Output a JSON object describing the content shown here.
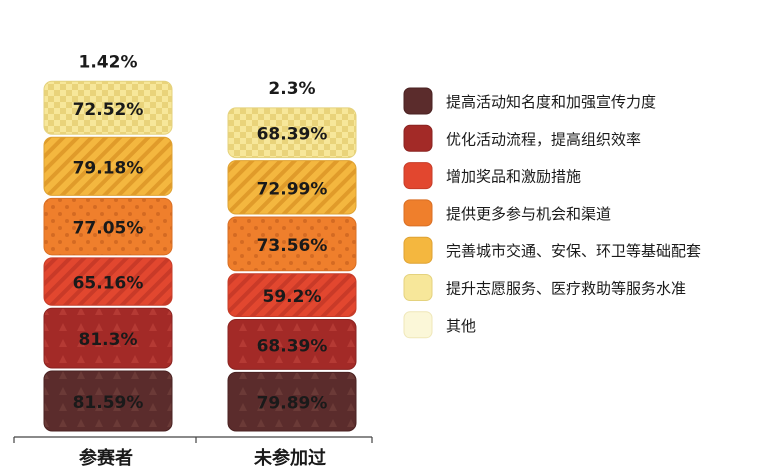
{
  "chart_data": {
    "type": "bar",
    "subtype": "stacked",
    "categories": [
      "参赛者",
      "未参加过"
    ],
    "series": [
      {
        "name": "提高活动知名度和加强宣传力度",
        "values": [
          81.59,
          79.89
        ],
        "labels": [
          "81.59%",
          "79.89%"
        ],
        "color": "#5b2c2c"
      },
      {
        "name": "优化活动流程，提高组织效率",
        "values": [
          81.3,
          68.39
        ],
        "labels": [
          "81.3%",
          "68.39%"
        ],
        "color": "#a32a27"
      },
      {
        "name": "增加奖品和激励措施",
        "values": [
          65.16,
          59.2
        ],
        "labels": [
          "65.16%",
          "59.2%"
        ],
        "color": "#e2472f"
      },
      {
        "name": "提供更多参与机会和渠道",
        "values": [
          77.05,
          73.56
        ],
        "labels": [
          "77.05%",
          "73.56%"
        ],
        "color": "#ef7f2c"
      },
      {
        "name": "完善城市交通、安保、环卫等基础配套",
        "values": [
          79.18,
          72.99
        ],
        "labels": [
          "79.18%",
          "72.99%"
        ],
        "color": "#f4b73f"
      },
      {
        "name": "提升志愿服务、医疗救助等服务水准",
        "values": [
          72.52,
          68.39
        ],
        "labels": [
          "72.52%",
          "68.39%"
        ],
        "color": "#f7e79a"
      },
      {
        "name": "其他",
        "values": [
          1.42,
          2.3
        ],
        "labels": [
          "1.42%",
          "2.3%"
        ],
        "color": "#fbf7d8"
      }
    ],
    "legend_position": "right",
    "grid": false,
    "title": "",
    "xlabel": "",
    "ylabel": ""
  }
}
